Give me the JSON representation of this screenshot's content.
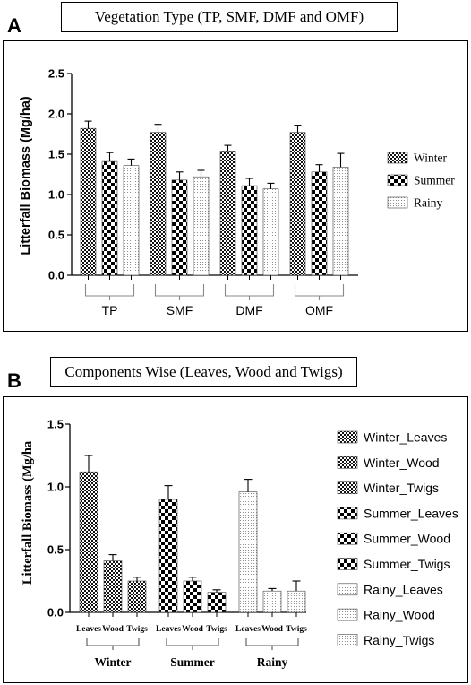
{
  "panel_a": {
    "letter": "A",
    "title": "Vegetation Type (TP, SMF, DMF and OMF)"
  },
  "panel_b": {
    "letter": "B",
    "title": "Components Wise (Leaves, Wood and Twigs)"
  },
  "patterns": {
    "Winter": "dense-check",
    "Summer": "large-check",
    "Rainy": "fine-dots"
  },
  "chart_data": [
    {
      "type": "bar",
      "title": "Vegetation Type (TP, SMF, DMF and OMF)",
      "xlabel": "",
      "ylabel": "Litterfall Biomass (Mg/ha)",
      "ylim": [
        0,
        2.5
      ],
      "yticks": [
        "0.0",
        "0.5",
        "1.0",
        "1.5",
        "2.0",
        "2.5"
      ],
      "ytick_values": [
        0,
        0.5,
        1.0,
        1.5,
        2.0,
        2.5
      ],
      "categories": [
        "TP",
        "SMF",
        "DMF",
        "OMF"
      ],
      "series": [
        {
          "name": "Winter",
          "values": [
            1.82,
            1.77,
            1.54,
            1.77
          ],
          "errors": [
            0.09,
            0.1,
            0.07,
            0.09
          ]
        },
        {
          "name": "Summer",
          "values": [
            1.41,
            1.18,
            1.11,
            1.28
          ],
          "errors": [
            0.11,
            0.1,
            0.09,
            0.09
          ]
        },
        {
          "name": "Rainy",
          "values": [
            1.36,
            1.22,
            1.07,
            1.34
          ],
          "errors": [
            0.08,
            0.08,
            0.07,
            0.17
          ]
        }
      ],
      "legend_position": "right",
      "grid": false
    },
    {
      "type": "bar",
      "title": "Components Wise (Leaves, Wood and Twigs)",
      "xlabel": "",
      "ylabel": "Litterfall Biomass (Mg/ha",
      "ylim": [
        0,
        1.5
      ],
      "yticks": [
        "0.0",
        "0.5",
        "1.0",
        "1.5"
      ],
      "ytick_values": [
        0,
        0.5,
        1.0,
        1.5
      ],
      "groups": [
        "Winter",
        "Summer",
        "Rainy"
      ],
      "components": [
        "Leaves",
        "Wood",
        "Twigs"
      ],
      "bars": [
        {
          "name": "Winter_Leaves",
          "group": "Winter",
          "component": "Leaves",
          "value": 1.12,
          "error": 0.13
        },
        {
          "name": "Winter_Wood",
          "group": "Winter",
          "component": "Wood",
          "value": 0.41,
          "error": 0.05
        },
        {
          "name": "Winter_Twigs",
          "group": "Winter",
          "component": "Twigs",
          "value": 0.25,
          "error": 0.03
        },
        {
          "name": "Summer_Leaves",
          "group": "Summer",
          "component": "Leaves",
          "value": 0.9,
          "error": 0.11
        },
        {
          "name": "Summer_Wood",
          "group": "Summer",
          "component": "Wood",
          "value": 0.25,
          "error": 0.03
        },
        {
          "name": "Summer_Twigs",
          "group": "Summer",
          "component": "Twigs",
          "value": 0.16,
          "error": 0.02
        },
        {
          "name": "Rainy_Leaves",
          "group": "Rainy",
          "component": "Leaves",
          "value": 0.96,
          "error": 0.1
        },
        {
          "name": "Rainy_Wood",
          "group": "Rainy",
          "component": "Wood",
          "value": 0.17,
          "error": 0.02
        },
        {
          "name": "Rainy_Twigs",
          "group": "Rainy",
          "component": "Twigs",
          "value": 0.17,
          "error": 0.08
        }
      ],
      "legend_position": "right",
      "grid": false
    }
  ]
}
